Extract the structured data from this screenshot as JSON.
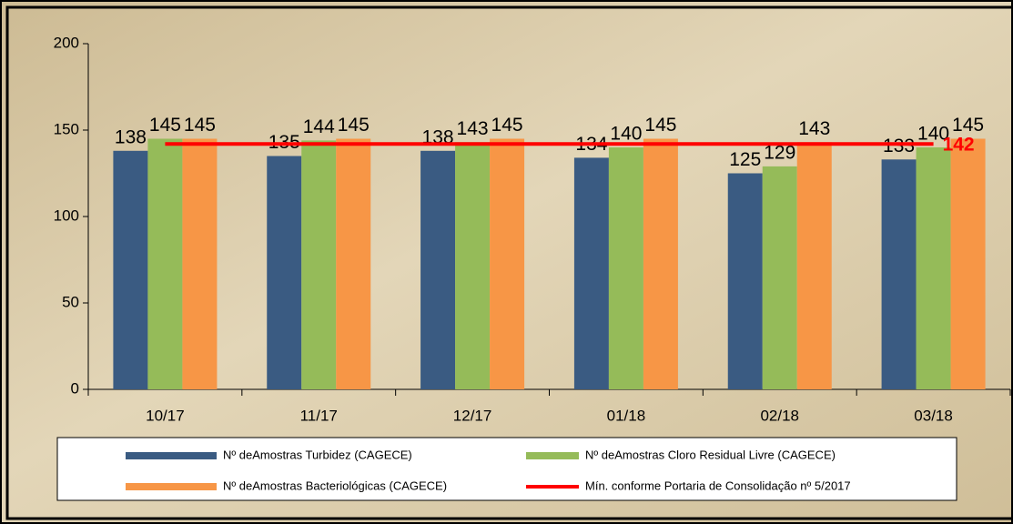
{
  "chart_data": {
    "type": "bar",
    "categories": [
      "10/17",
      "11/17",
      "12/17",
      "01/18",
      "02/18",
      "03/18"
    ],
    "series": [
      {
        "name": "Nº deAmostras Turbidez (CAGECE)",
        "color": "#3a5b82",
        "values": [
          138,
          135,
          138,
          134,
          125,
          133
        ]
      },
      {
        "name": "Nº deAmostras Cloro Residual Livre (CAGECE)",
        "color": "#95bb59",
        "values": [
          145,
          144,
          143,
          140,
          129,
          140
        ]
      },
      {
        "name": "Nº deAmostras Bacteriológicas (CAGECE)",
        "color": "#f79646",
        "values": [
          145,
          145,
          145,
          145,
          143,
          145
        ]
      },
      {
        "name": "Mín. conforme Portaria de Consolidação nº 5/2017",
        "color": "#ff0000",
        "type": "line",
        "values": [
          142,
          142,
          142,
          142,
          142,
          142
        ]
      }
    ],
    "ylim": [
      0,
      200
    ],
    "yticks": [
      0,
      50,
      100,
      150,
      200
    ]
  }
}
